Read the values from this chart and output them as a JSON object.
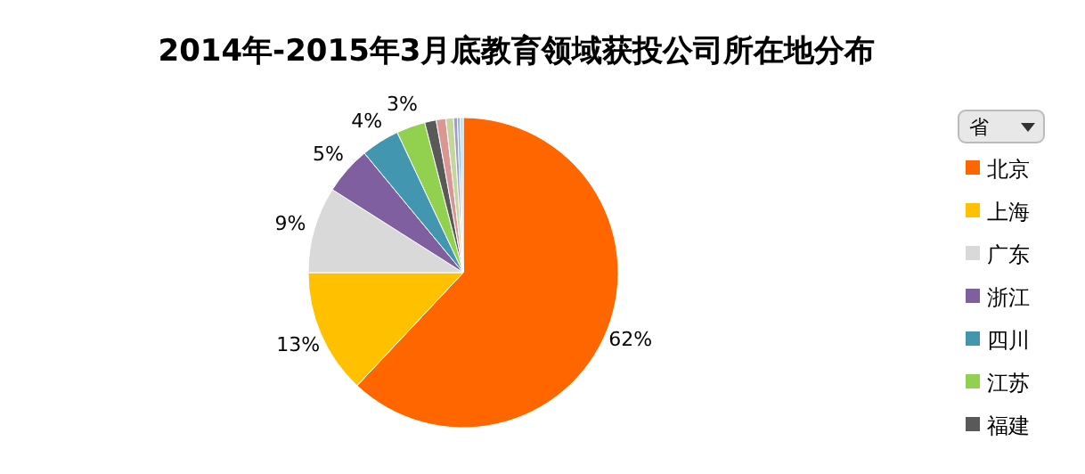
{
  "chart_data": {
    "type": "pie",
    "title": "2014年-2015年3月底教育领域获投公司所在地分布",
    "legend_title": "省",
    "legend": "right",
    "categories": [
      "北京",
      "上海",
      "广东",
      "浙江",
      "四川",
      "江苏",
      "福建",
      null,
      null,
      null,
      null,
      null
    ],
    "values": [
      62,
      13,
      9,
      5,
      4,
      3,
      1.2,
      1.0,
      0.8,
      0.4,
      0.3,
      0.3
    ],
    "value_labels": [
      "62%",
      "13%",
      "9%",
      "5%",
      "4%",
      "3%",
      null,
      null,
      null,
      null,
      null,
      null
    ],
    "colors": [
      "#ff6600",
      "#ffc000",
      "#d9d9d9",
      "#7f5f9f",
      "#4396b0",
      "#92d050",
      "#595959",
      "#d99694",
      "#c3d69b",
      "#a09cc8",
      "#8db4e2",
      "#b7dee8"
    ]
  }
}
